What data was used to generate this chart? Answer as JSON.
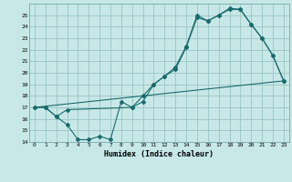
{
  "xlabel": "Humidex (Indice chaleur)",
  "bg_color": "#c8e8e8",
  "grid_color": "#a0c8c8",
  "line_color": "#1a6b6b",
  "xlim": [
    -0.5,
    23.5
  ],
  "ylim": [
    14,
    26
  ],
  "xticks": [
    0,
    1,
    2,
    3,
    4,
    5,
    6,
    7,
    8,
    9,
    10,
    11,
    12,
    13,
    14,
    15,
    16,
    17,
    18,
    19,
    20,
    21,
    22,
    23
  ],
  "yticks": [
    14,
    15,
    16,
    17,
    18,
    19,
    20,
    21,
    22,
    23,
    24,
    25
  ],
  "line1_zigzag": {
    "x": [
      0,
      1,
      2,
      3,
      4,
      5,
      6,
      7,
      8,
      9,
      10,
      11,
      12,
      13,
      14,
      15,
      16,
      17,
      18,
      19,
      20,
      21,
      22,
      23
    ],
    "y": [
      17.0,
      17.0,
      16.2,
      15.5,
      14.2,
      14.2,
      14.5,
      14.2,
      17.5,
      17.0,
      17.5,
      19.0,
      19.7,
      20.5,
      22.3,
      25.0,
      24.5,
      25.0,
      25.5,
      25.5,
      24.2,
      23.0,
      21.5,
      19.3
    ]
  },
  "line2_upper": {
    "x": [
      0,
      1,
      2,
      3,
      9,
      10,
      11,
      12,
      13,
      14,
      15,
      16,
      17,
      18,
      19,
      20,
      21,
      22,
      23
    ],
    "y": [
      17.0,
      17.0,
      16.2,
      16.8,
      17.0,
      18.0,
      19.0,
      19.7,
      20.3,
      22.2,
      24.8,
      24.5,
      25.0,
      25.6,
      25.5,
      24.2,
      23.0,
      21.5,
      19.3
    ]
  },
  "line3_diagonal": {
    "x": [
      0,
      23
    ],
    "y": [
      17.0,
      19.3
    ]
  }
}
